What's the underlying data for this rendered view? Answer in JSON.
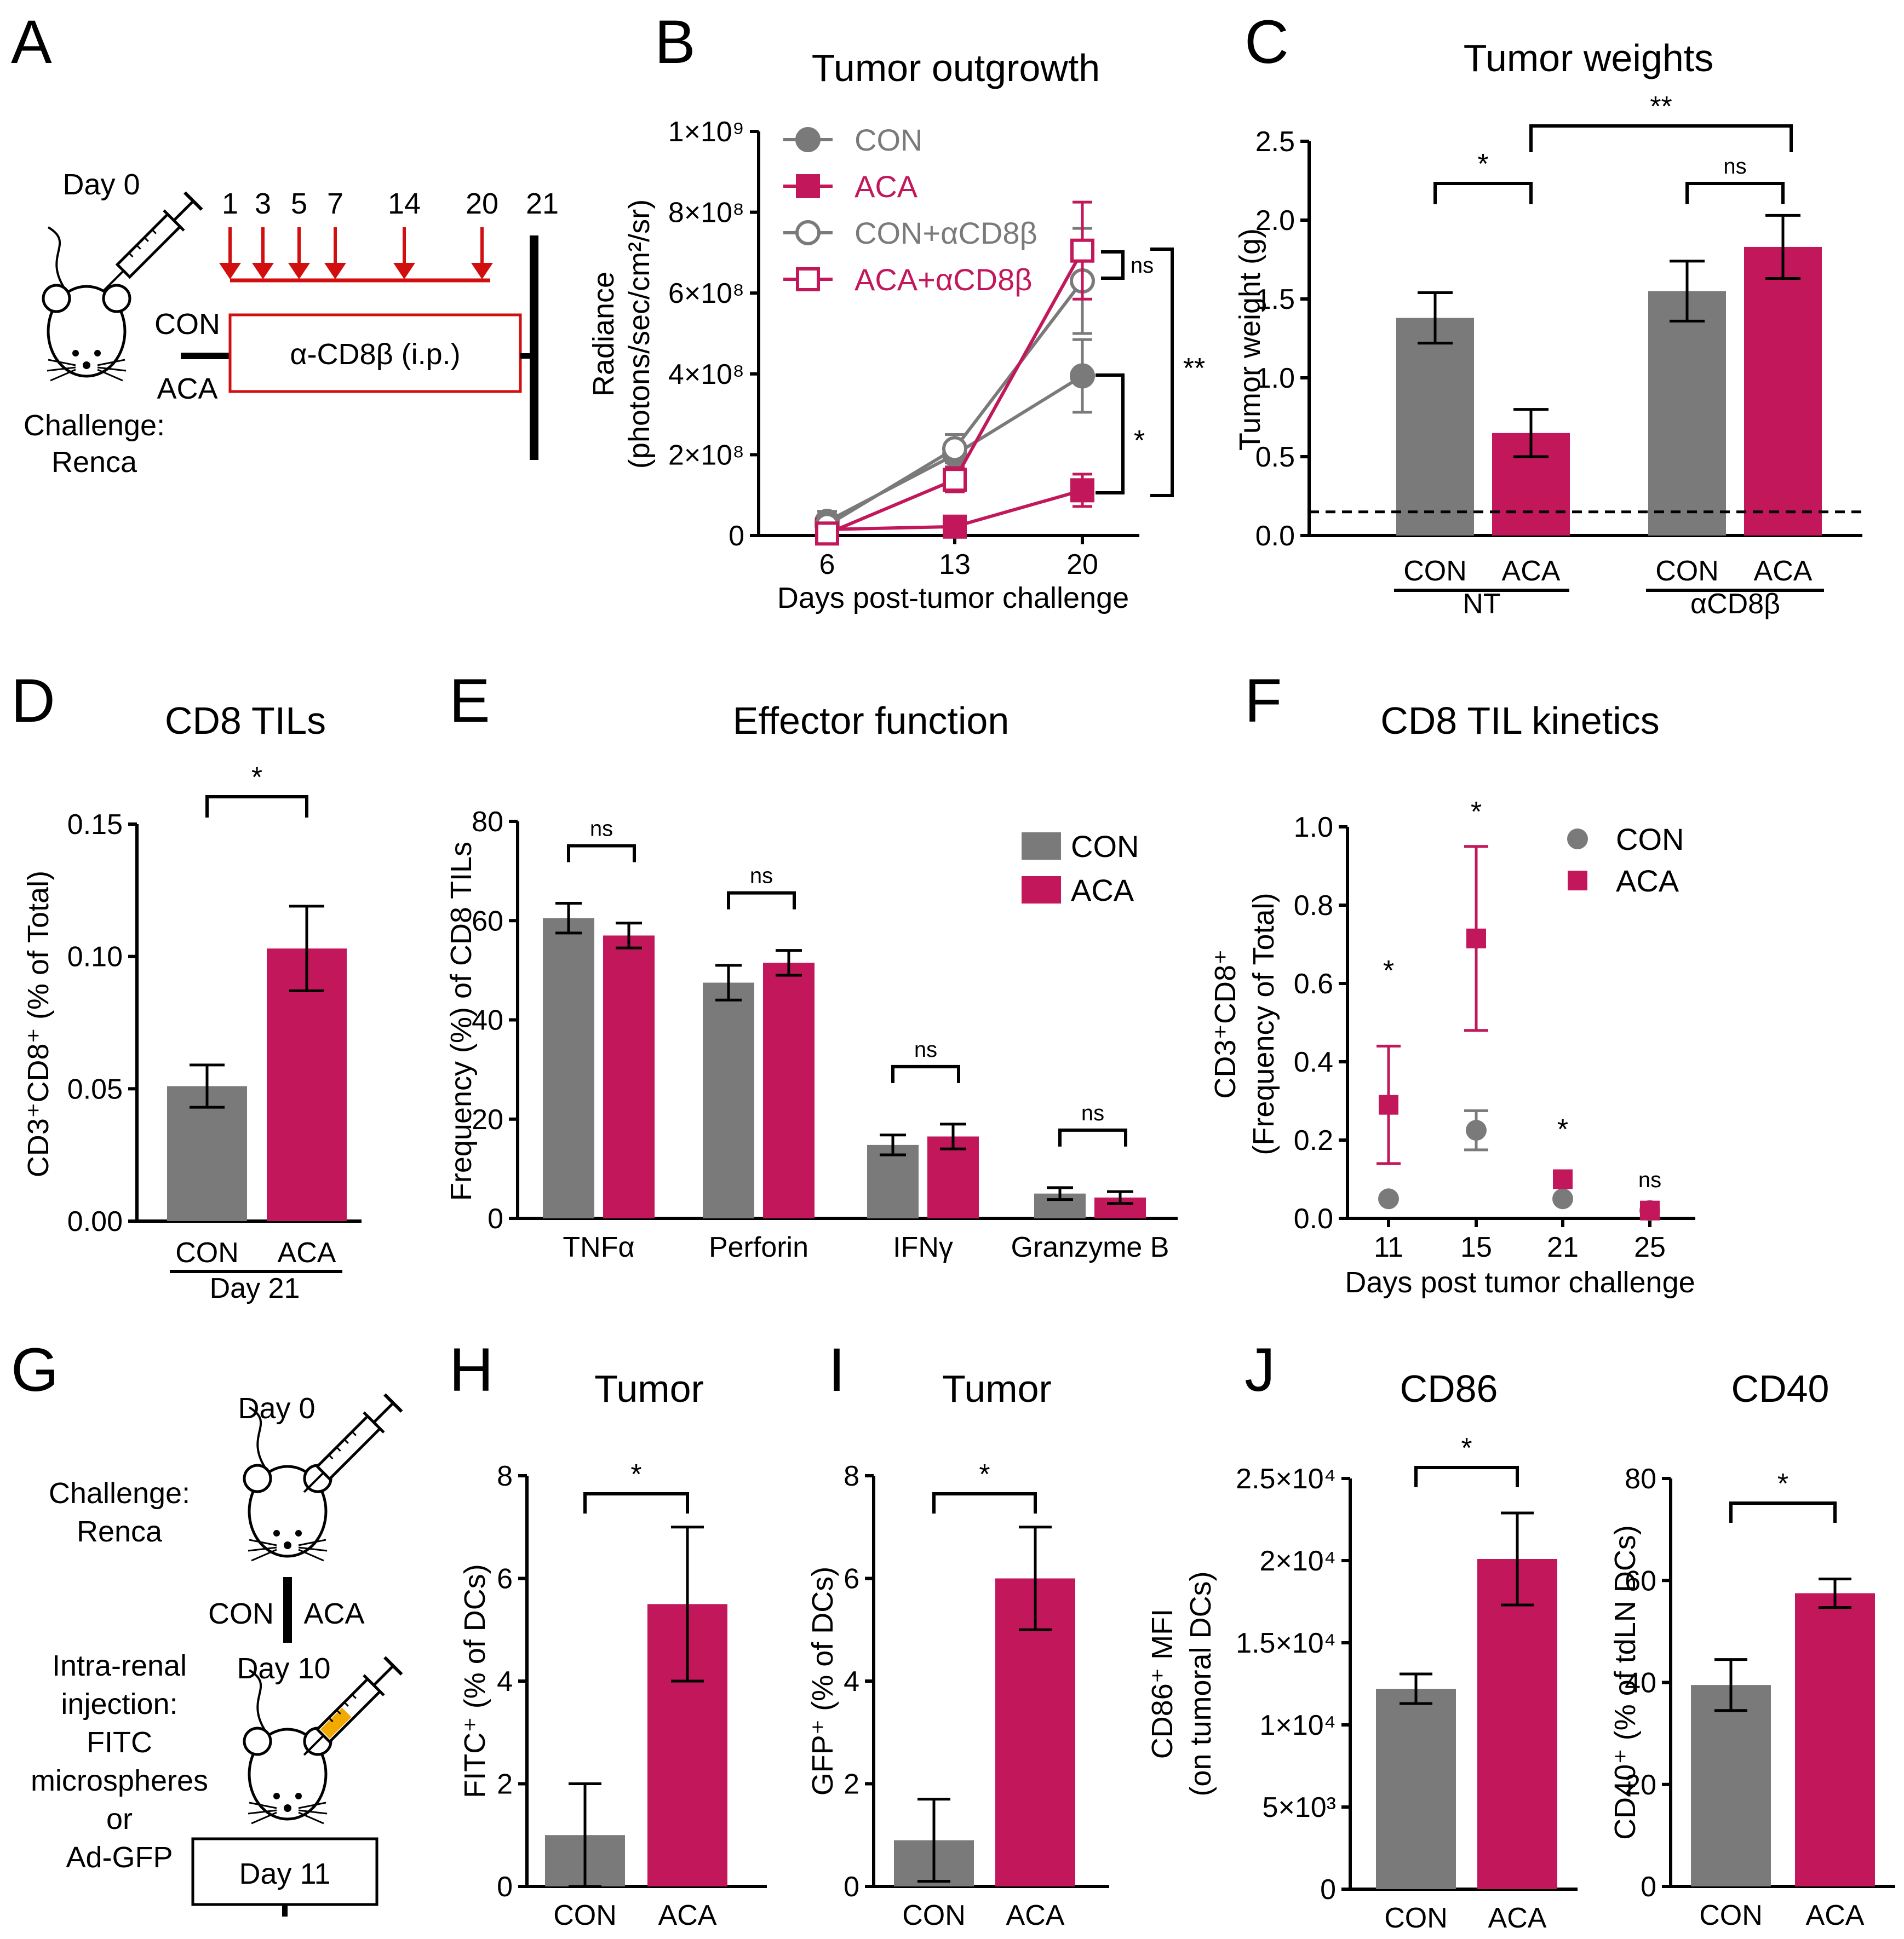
{
  "colors": {
    "con": "#7a7a7a",
    "aca": "#c2185b",
    "arrow": "#d10f0f",
    "black": "#000000"
  },
  "panel_labels": [
    "A",
    "B",
    "C",
    "D",
    "E",
    "F",
    "G",
    "H",
    "I",
    "J"
  ],
  "icons": [
    "mouse-icon",
    "syringe-icon",
    "arrow-icon"
  ],
  "panelA": {
    "day0": "Day 0",
    "challenge": "Challenge:",
    "renca": "Renca",
    "con": "CON",
    "aca": "ACA",
    "box": "α-CD8β (i.p.)",
    "days": [
      "1",
      "3",
      "5",
      "7",
      "14",
      "20",
      "21"
    ]
  },
  "panelG": {
    "day0": "Day 0",
    "challenge": "Challenge:",
    "renca": "Renca",
    "con": "CON",
    "aca": "ACA",
    "inj1": "Intra-renal",
    "inj2": "injection:",
    "inj3": "FITC",
    "inj4": "microspheres",
    "inj5": "or",
    "inj6": "Ad-GFP",
    "day10": "Day 10",
    "day11": "Day 11"
  },
  "chart_data": [
    {
      "panel": "B",
      "type": "line",
      "title": "Tumor outgrowth",
      "xlabel": "Days post-tumor challenge",
      "ylabel": "Radiance",
      "ylabel2": "(photons/sec/cm²/sr)",
      "x": [
        6,
        13,
        20
      ],
      "yticks": [
        "0",
        "2×10⁸",
        "4×10⁸",
        "6×10⁸",
        "8×10⁸",
        "1×10⁹"
      ],
      "ylim": [
        0,
        1000000000
      ],
      "series": [
        {
          "name": "CON",
          "marker": "circle-filled",
          "values": [
            35000000,
            200000000,
            395000000
          ],
          "errors": [
            25000000,
            30000000,
            90000000
          ]
        },
        {
          "name": "ACA",
          "marker": "square-filled",
          "values": [
            15000000,
            22000000,
            112000000
          ],
          "errors": [
            10000000,
            10000000,
            40000000
          ]
        },
        {
          "name": "CON+αCD8β",
          "marker": "circle-open",
          "values": [
            25000000,
            215000000,
            630000000
          ],
          "errors": [
            15000000,
            35000000,
            130000000
          ]
        },
        {
          "name": "ACA+αCD8β",
          "marker": "square-open",
          "values": [
            5000000,
            138000000,
            705000000
          ],
          "errors": [
            5000000,
            30000000,
            120000000
          ]
        }
      ],
      "annotations": [
        "ns",
        "*",
        "**"
      ]
    },
    {
      "panel": "C",
      "type": "bar",
      "title": "Tumor weights",
      "ylabel": "Tumor weight (g)",
      "categories": [
        "CON",
        "ACA",
        "CON",
        "ACA"
      ],
      "groups": [
        "NT",
        "αCD8β"
      ],
      "yticks": [
        "0.0",
        "0.5",
        "1.0",
        "1.5",
        "2.0",
        "2.5"
      ],
      "ylim": [
        0,
        2.5
      ],
      "values": [
        1.38,
        0.65,
        1.55,
        1.83
      ],
      "errors": [
        0.16,
        0.15,
        0.19,
        0.2
      ],
      "threshold": 0.15,
      "annotations": [
        "*",
        "ns",
        "**"
      ]
    },
    {
      "panel": "D",
      "type": "bar",
      "title": "CD8 TILs",
      "ylabel": "CD3⁺CD8⁺ (% of Total)",
      "categories": [
        "CON",
        "ACA"
      ],
      "group": "Day 21",
      "yticks": [
        "0.00",
        "0.05",
        "0.10",
        "0.15"
      ],
      "ylim": [
        0,
        0.15
      ],
      "values": [
        0.051,
        0.103
      ],
      "errors": [
        0.008,
        0.016
      ],
      "annotations": [
        "*"
      ]
    },
    {
      "panel": "E",
      "type": "bar",
      "title": "Effector function",
      "ylabel": "Frequency (%) of CD8 TILs",
      "categories": [
        "TNFα",
        "Perforin",
        "IFNγ",
        "Granzyme B"
      ],
      "yticks": [
        "0",
        "20",
        "40",
        "60",
        "80"
      ],
      "ylim": [
        0,
        80
      ],
      "series": [
        {
          "name": "CON",
          "values": [
            60.5,
            47.5,
            14.8,
            5.0
          ],
          "errors": [
            3.0,
            3.5,
            2.0,
            1.2
          ]
        },
        {
          "name": "ACA",
          "values": [
            57.0,
            51.5,
            16.5,
            4.2
          ],
          "errors": [
            2.5,
            2.5,
            2.5,
            1.2
          ]
        }
      ],
      "annotations": [
        "ns",
        "ns",
        "ns",
        "ns"
      ]
    },
    {
      "panel": "F",
      "type": "scatter",
      "title": "CD8 TIL kinetics",
      "xlabel": "Days post tumor challenge",
      "ylabel": "CD3⁺CD8⁺",
      "ylabel2": "(Frequency of Total)",
      "x": [
        11,
        15,
        21,
        25
      ],
      "yticks": [
        "0.0",
        "0.2",
        "0.4",
        "0.6",
        "0.8",
        "1.0"
      ],
      "ylim": [
        0,
        1.0
      ],
      "series": [
        {
          "name": "CON",
          "marker": "circle-filled",
          "values": [
            0.05,
            0.225,
            0.05,
            0.02
          ],
          "errors": [
            0,
            0.05,
            0,
            0
          ]
        },
        {
          "name": "ACA",
          "marker": "square-filled",
          "values": [
            0.29,
            0.715,
            0.1,
            0.02
          ],
          "errors": [
            0.15,
            0.235,
            0,
            0
          ]
        }
      ],
      "annotations": [
        "*",
        "*",
        "*",
        "ns"
      ]
    },
    {
      "panel": "H",
      "type": "bar",
      "title": "Tumor",
      "ylabel": "FITC⁺ (% of DCs)",
      "categories": [
        "CON",
        "ACA"
      ],
      "yticks": [
        "0",
        "2",
        "4",
        "6",
        "8"
      ],
      "ylim": [
        0,
        8
      ],
      "values": [
        1.0,
        5.5
      ],
      "errors": [
        1.0,
        1.5
      ],
      "annotations": [
        "*"
      ]
    },
    {
      "panel": "I",
      "type": "bar",
      "title": "Tumor",
      "ylabel": "GFP⁺ (% of DCs)",
      "categories": [
        "CON",
        "ACA"
      ],
      "yticks": [
        "0",
        "2",
        "4",
        "6",
        "8"
      ],
      "ylim": [
        0,
        8
      ],
      "values": [
        0.9,
        6.0
      ],
      "errors": [
        0.8,
        1.0
      ],
      "annotations": [
        "*"
      ]
    },
    {
      "panel": "J",
      "type": "bar",
      "title": "CD86",
      "ylabel": "CD86⁺ MFI",
      "ylabel2": "(on tumoral DCs)",
      "categories": [
        "CON",
        "ACA"
      ],
      "yticks": [
        "0",
        "5×10³",
        "1×10⁴",
        "1.5×10⁴",
        "2×10⁴",
        "2.5×10⁴"
      ],
      "ylim": [
        0,
        25000
      ],
      "values": [
        12200,
        20100
      ],
      "errors": [
        900,
        2800
      ],
      "annotations": [
        "*"
      ]
    },
    {
      "panel": "J",
      "type": "bar",
      "title": "CD40",
      "ylabel": "CD40⁺ (% of tdLN DCs)",
      "categories": [
        "CON",
        "ACA"
      ],
      "yticks": [
        "0",
        "20",
        "40",
        "60",
        "80"
      ],
      "ylim": [
        0,
        80
      ],
      "values": [
        39.5,
        57.5
      ],
      "errors": [
        5.0,
        2.8
      ],
      "annotations": [
        "*"
      ]
    }
  ]
}
